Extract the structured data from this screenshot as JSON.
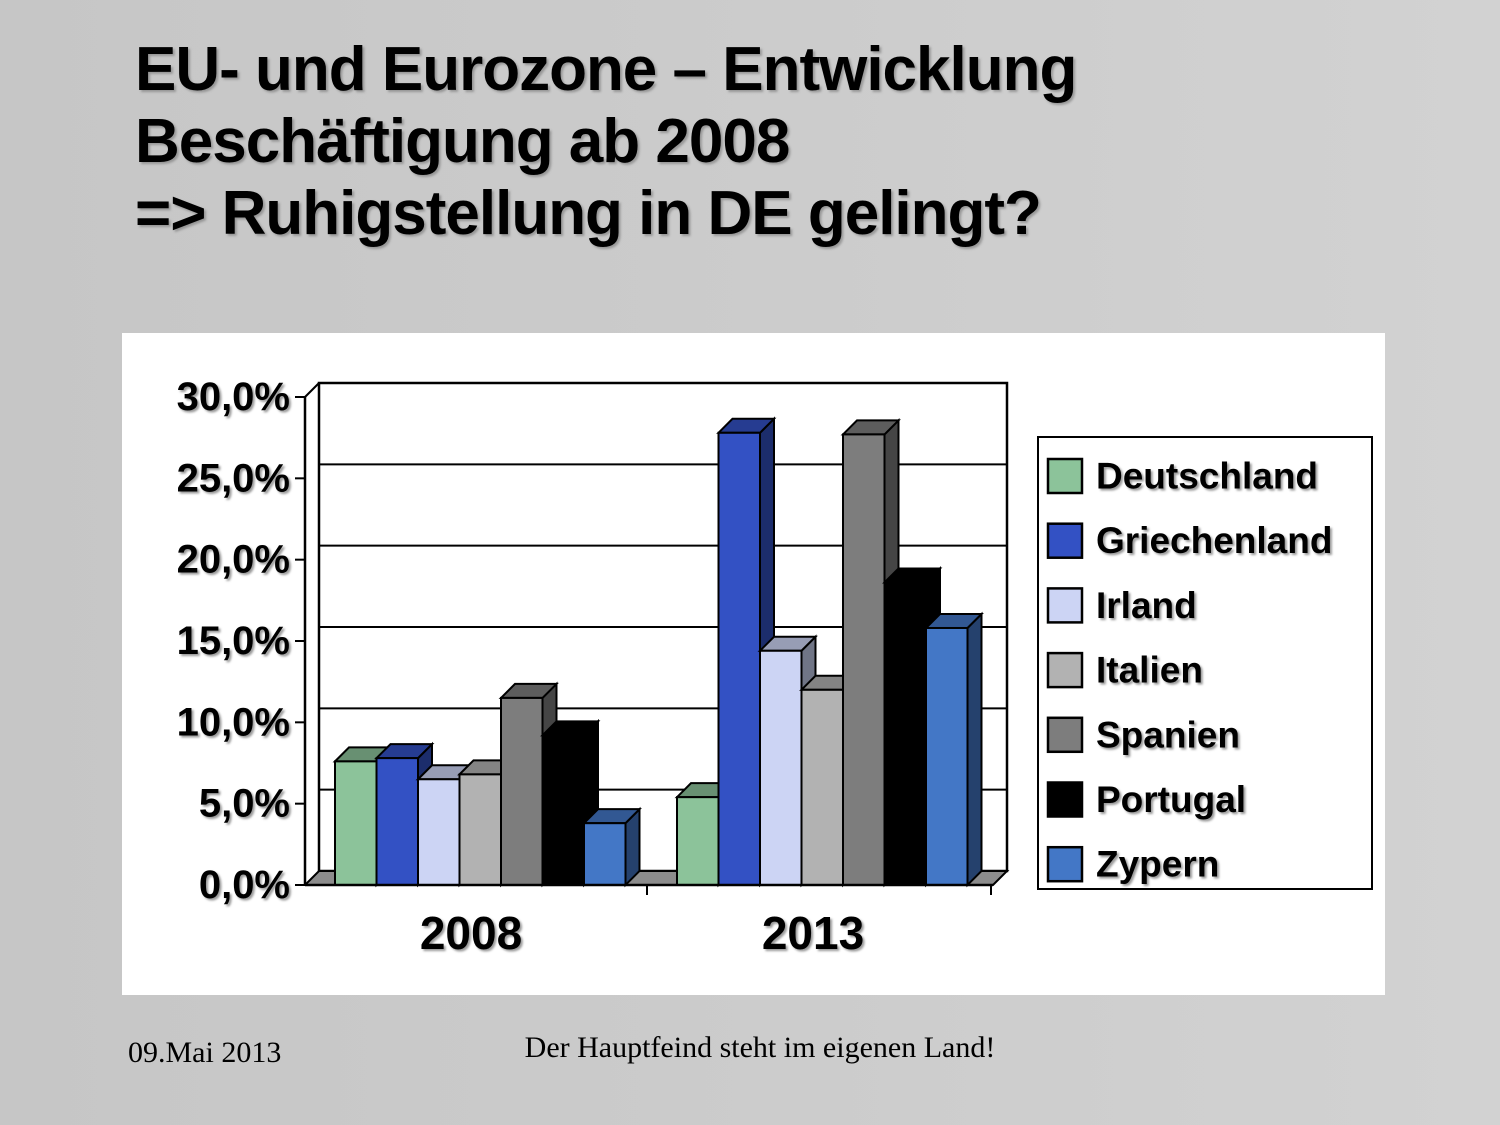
{
  "slide": {
    "title_lines": [
      "EU- und Eurozone – Entwicklung",
      "Beschäftigung ab 2008",
      "=> Ruhigstellung in DE gelingt?"
    ],
    "footer_date": "09.Mai 2013",
    "footer_message": "Der Hauptfeind steht im eigenen Land!"
  },
  "colors": {
    "background_left": "#C6C6C6",
    "background_right": "#D2D2D2",
    "panel": "#FFFFFF",
    "floor": "#8C8C8C",
    "wall": "#FFFFFF",
    "gridline": "#000000",
    "outline": "#000000"
  },
  "chart_data": {
    "type": "bar",
    "projection": "3d",
    "title": "",
    "xlabel": "",
    "ylabel": "",
    "categories": [
      "2008",
      "2013"
    ],
    "series": [
      {
        "name": "Deutschland",
        "color": "#8CC39A",
        "values": [
          7.6,
          5.4
        ]
      },
      {
        "name": "Griechenland",
        "color": "#3351C4",
        "values": [
          7.8,
          27.8
        ]
      },
      {
        "name": "Irland",
        "color": "#CCD4F4",
        "values": [
          6.5,
          14.4
        ]
      },
      {
        "name": "Italien",
        "color": "#B2B2B2",
        "values": [
          6.8,
          12.0
        ]
      },
      {
        "name": "Spanien",
        "color": "#7D7D7D",
        "values": [
          11.5,
          27.7
        ]
      },
      {
        "name": "Portugal",
        "color": "#000000",
        "values": [
          9.2,
          18.6
        ]
      },
      {
        "name": "Zypern",
        "color": "#4377C6",
        "values": [
          3.8,
          15.8
        ]
      }
    ],
    "y_axis": {
      "min": 0,
      "max": 30,
      "step": 5,
      "tick_labels": [
        "30,0%",
        "25,0%",
        "20,0%",
        "15,0%",
        "10,0%",
        "5,0%",
        "0,0%"
      ]
    },
    "grid": true,
    "legend_position": "right"
  }
}
